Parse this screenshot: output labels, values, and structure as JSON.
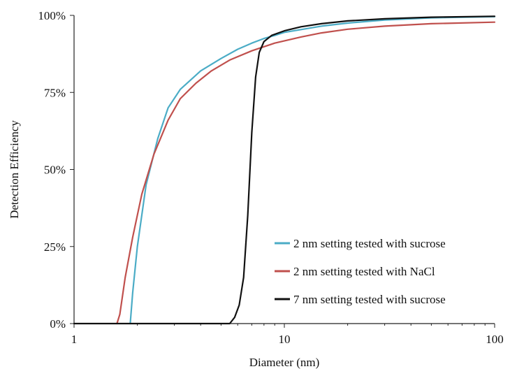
{
  "chart_data": {
    "type": "line",
    "xlabel": "Diameter (nm)",
    "ylabel": "Detection Efficiency",
    "xscale": "log",
    "xlim": [
      1,
      100
    ],
    "ylim": [
      0,
      100
    ],
    "xticks": [
      1,
      10,
      100
    ],
    "xtick_labels": [
      "1",
      "10",
      "100"
    ],
    "yticks": [
      0,
      25,
      50,
      75,
      100
    ],
    "ytick_labels": [
      "0%",
      "25%",
      "50%",
      "75%",
      "100%"
    ],
    "grid": false,
    "legend_position": "bottom-right",
    "series": [
      {
        "name": "2 nm setting tested with sucrose",
        "color": "#4bacc6",
        "points": [
          [
            1.85,
            0
          ],
          [
            1.9,
            10
          ],
          [
            2.0,
            25
          ],
          [
            2.2,
            45
          ],
          [
            2.5,
            60
          ],
          [
            2.8,
            70
          ],
          [
            3.2,
            76
          ],
          [
            4,
            82
          ],
          [
            5,
            86
          ],
          [
            6,
            89
          ],
          [
            7,
            91
          ],
          [
            8,
            92.5
          ],
          [
            9,
            93.5
          ],
          [
            10,
            94.5
          ],
          [
            15,
            96.5
          ],
          [
            20,
            97.5
          ],
          [
            30,
            98.5
          ],
          [
            50,
            99.2
          ],
          [
            100,
            99.6
          ]
        ]
      },
      {
        "name": "2 nm setting tested with NaCl",
        "color": "#c0504d",
        "points": [
          [
            1.6,
            0
          ],
          [
            1.65,
            3
          ],
          [
            1.75,
            15
          ],
          [
            1.9,
            28
          ],
          [
            2.1,
            42
          ],
          [
            2.4,
            55
          ],
          [
            2.8,
            66
          ],
          [
            3.2,
            73
          ],
          [
            3.8,
            78
          ],
          [
            4.5,
            82
          ],
          [
            5.5,
            85.5
          ],
          [
            7,
            88.5
          ],
          [
            9,
            91
          ],
          [
            12,
            93
          ],
          [
            15,
            94.3
          ],
          [
            20,
            95.5
          ],
          [
            30,
            96.5
          ],
          [
            50,
            97.3
          ],
          [
            100,
            97.8
          ]
        ]
      },
      {
        "name": "7 nm setting tested with sucrose",
        "color": "#111111",
        "points": [
          [
            1,
            0
          ],
          [
            5.5,
            0
          ],
          [
            5.8,
            2
          ],
          [
            6.1,
            6
          ],
          [
            6.4,
            15
          ],
          [
            6.7,
            35
          ],
          [
            7.0,
            62
          ],
          [
            7.3,
            80
          ],
          [
            7.6,
            88
          ],
          [
            8.0,
            91.5
          ],
          [
            8.7,
            93.5
          ],
          [
            10,
            95
          ],
          [
            12,
            96.3
          ],
          [
            15,
            97.3
          ],
          [
            20,
            98.2
          ],
          [
            30,
            98.9
          ],
          [
            50,
            99.4
          ],
          [
            100,
            99.7
          ]
        ]
      }
    ]
  }
}
